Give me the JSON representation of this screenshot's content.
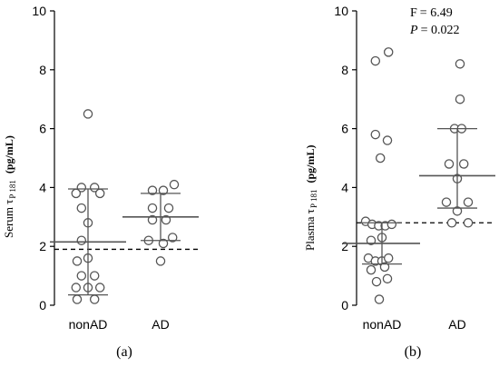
{
  "chart_data": [
    {
      "type": "scatter",
      "panel_label": "(a)",
      "ylabel": {
        "main": "Serum τ",
        "sub": "P 181",
        "unit": "(pg/mL)"
      },
      "ylim": [
        0,
        10
      ],
      "yticks": [
        "0",
        "2",
        "4",
        "6",
        "8",
        "10"
      ],
      "categories": [
        "nonAD",
        "AD"
      ],
      "cutoff": 1.9,
      "annotation": null,
      "groups": [
        {
          "category": "nonAD",
          "mean": 2.15,
          "sd_low": 0.35,
          "sd_high": 3.95,
          "points": [
            {
              "x": 0,
              "y": 6.5
            },
            {
              "x": -0.12,
              "y": 4.0
            },
            {
              "x": 0.12,
              "y": 4.0
            },
            {
              "x": -0.22,
              "y": 3.8
            },
            {
              "x": 0.22,
              "y": 3.8
            },
            {
              "x": -0.12,
              "y": 3.3
            },
            {
              "x": 0,
              "y": 2.8
            },
            {
              "x": -0.12,
              "y": 2.2
            },
            {
              "x": 0,
              "y": 1.6
            },
            {
              "x": -0.2,
              "y": 1.5
            },
            {
              "x": -0.12,
              "y": 1.0
            },
            {
              "x": 0.12,
              "y": 1.0
            },
            {
              "x": -0.22,
              "y": 0.6
            },
            {
              "x": 0,
              "y": 0.6
            },
            {
              "x": 0.22,
              "y": 0.6
            },
            {
              "x": -0.2,
              "y": 0.2
            },
            {
              "x": 0.12,
              "y": 0.2
            }
          ]
        },
        {
          "category": "AD",
          "mean": 3.0,
          "sd_low": 2.2,
          "sd_high": 3.8,
          "points": [
            {
              "x": -0.15,
              "y": 3.9
            },
            {
              "x": 0.05,
              "y": 3.9
            },
            {
              "x": 0.25,
              "y": 4.1
            },
            {
              "x": -0.15,
              "y": 3.3
            },
            {
              "x": 0.15,
              "y": 3.3
            },
            {
              "x": -0.15,
              "y": 2.9
            },
            {
              "x": 0.1,
              "y": 2.9
            },
            {
              "x": -0.22,
              "y": 2.2
            },
            {
              "x": 0.05,
              "y": 2.1
            },
            {
              "x": 0.22,
              "y": 2.3
            },
            {
              "x": 0,
              "y": 1.5
            }
          ]
        }
      ]
    },
    {
      "type": "scatter",
      "panel_label": "(b)",
      "ylabel": {
        "main": "Plasma τ",
        "sub": "P 181",
        "unit": "(pg/mL)"
      },
      "ylim": [
        0,
        10
      ],
      "yticks": [
        "0",
        "2",
        "4",
        "6",
        "8",
        "10"
      ],
      "categories": [
        "nonAD",
        "AD"
      ],
      "cutoff": 2.8,
      "annotation": {
        "f_label": "F",
        "f_value": "= 6.49",
        "p_label": "P",
        "p_value": "= 0.022"
      },
      "groups": [
        {
          "category": "nonAD",
          "mean": 2.1,
          "sd_low": 1.4,
          "sd_high": 2.8,
          "points": [
            {
              "x": -0.12,
              "y": 8.3
            },
            {
              "x": 0.12,
              "y": 8.6
            },
            {
              "x": -0.12,
              "y": 5.8
            },
            {
              "x": 0.1,
              "y": 5.6
            },
            {
              "x": -0.03,
              "y": 5.0
            },
            {
              "x": -0.3,
              "y": 2.85
            },
            {
              "x": -0.18,
              "y": 2.75
            },
            {
              "x": -0.06,
              "y": 2.7
            },
            {
              "x": 0.06,
              "y": 2.7
            },
            {
              "x": 0.18,
              "y": 2.75
            },
            {
              "x": -0.2,
              "y": 2.2
            },
            {
              "x": 0.0,
              "y": 2.3
            },
            {
              "x": -0.25,
              "y": 1.6
            },
            {
              "x": -0.12,
              "y": 1.5
            },
            {
              "x": 0.0,
              "y": 1.5
            },
            {
              "x": 0.12,
              "y": 1.6
            },
            {
              "x": -0.2,
              "y": 1.2
            },
            {
              "x": 0.05,
              "y": 1.3
            },
            {
              "x": -0.1,
              "y": 0.8
            },
            {
              "x": 0.1,
              "y": 0.9
            },
            {
              "x": -0.05,
              "y": 0.2
            }
          ]
        },
        {
          "category": "AD",
          "mean": 4.4,
          "sd_low": 3.3,
          "sd_high": 6.0,
          "points": [
            {
              "x": 0.05,
              "y": 8.2
            },
            {
              "x": 0.05,
              "y": 7.0
            },
            {
              "x": -0.05,
              "y": 6.0
            },
            {
              "x": 0.08,
              "y": 6.0
            },
            {
              "x": -0.15,
              "y": 4.8
            },
            {
              "x": 0.12,
              "y": 4.8
            },
            {
              "x": 0.0,
              "y": 4.3
            },
            {
              "x": -0.2,
              "y": 3.5
            },
            {
              "x": 0.2,
              "y": 3.5
            },
            {
              "x": 0.0,
              "y": 3.2
            },
            {
              "x": -0.1,
              "y": 2.8
            },
            {
              "x": 0.2,
              "y": 2.8
            }
          ]
        }
      ]
    }
  ]
}
